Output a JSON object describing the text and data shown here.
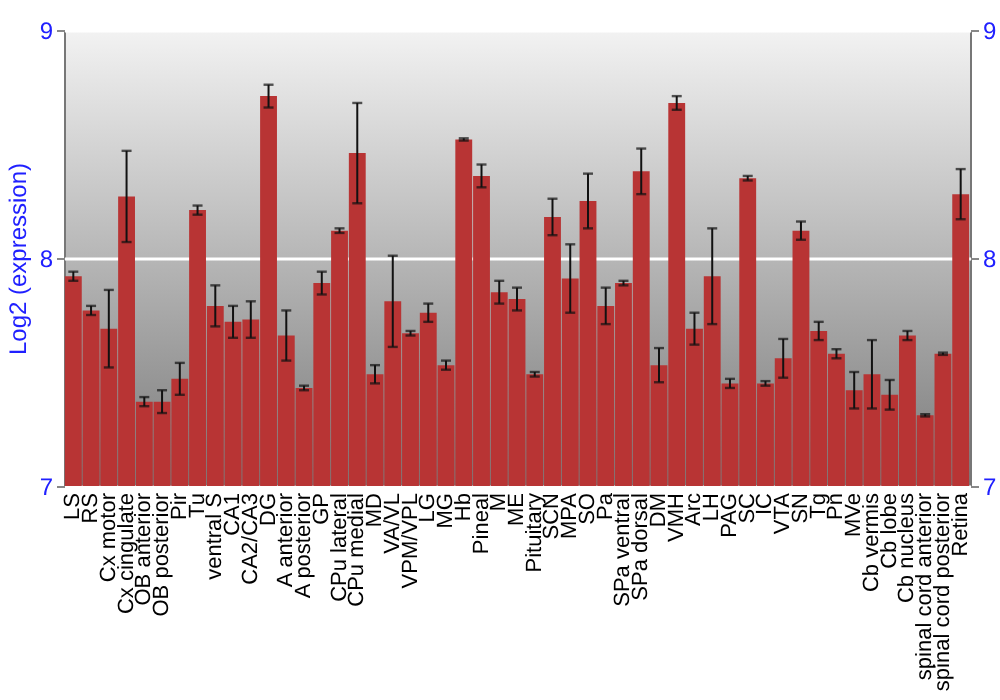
{
  "chart_data": {
    "type": "bar",
    "ylabel": "Log2 (expression)",
    "categories": [
      "LS",
      "RS",
      "Cx motor",
      "Cx cingulate",
      "OB anterior",
      "OB posterior",
      "Pir",
      "Tu",
      "ventral S",
      "CA1",
      "CA2/CA3",
      "DG",
      "A anterior",
      "A posterior",
      "GP",
      "CPu lateral",
      "CPu medial",
      "MD",
      "VA/VL",
      "VPM/VPL",
      "LG",
      "MG",
      "Hb",
      "Pineal",
      "M",
      "ME",
      "Pituitary",
      "SCN",
      "MPA",
      "SO",
      "Pa",
      "SPa ventral",
      "SPa dorsal",
      "DM",
      "VMH",
      "Arc",
      "LH",
      "PAG",
      "SC",
      "IC",
      "VTA",
      "SN",
      "Tg",
      "Pn",
      "MVe",
      "Cb vermis",
      "Cb lobe",
      "Cb nucleus",
      "spinal cord anterior",
      "spinal cord posterior",
      "Retina"
    ],
    "series": [
      {
        "color": "#b83434",
        "values": [
          7.92,
          7.77,
          7.69,
          8.27,
          7.37,
          7.37,
          7.47,
          8.21,
          7.79,
          7.72,
          7.73,
          8.71,
          7.66,
          7.43,
          7.89,
          8.12,
          8.46,
          7.49,
          7.81,
          7.67,
          7.76,
          7.53,
          8.52,
          8.36,
          7.85,
          7.82,
          7.49,
          8.18,
          7.91,
          8.25,
          7.79,
          7.89,
          8.38,
          7.53,
          8.68,
          7.69,
          7.92,
          7.45,
          8.35,
          7.45,
          7.56,
          8.12,
          7.68,
          7.58,
          7.42,
          7.49,
          7.4,
          7.66,
          7.31,
          7.58,
          8.28
        ],
        "errors": [
          0.02,
          0.02,
          0.17,
          0.2,
          0.02,
          0.05,
          0.07,
          0.02,
          0.09,
          0.07,
          0.08,
          0.05,
          0.11,
          0.01,
          0.05,
          0.01,
          0.22,
          0.04,
          0.2,
          0.01,
          0.04,
          0.02,
          0.005,
          0.05,
          0.05,
          0.05,
          0.01,
          0.08,
          0.15,
          0.12,
          0.08,
          0.01,
          0.1,
          0.075,
          0.03,
          0.07,
          0.21,
          0.02,
          0.01,
          0.01,
          0.085,
          0.04,
          0.04,
          0.02,
          0.08,
          0.15,
          0.065,
          0.02,
          0.005,
          0.005,
          0.11
        ]
      }
    ],
    "ylim": [
      7,
      9
    ],
    "yticks": [
      7,
      8,
      9
    ],
    "y2lim": [
      7,
      9
    ],
    "y2ticks": [
      7,
      8,
      9
    ],
    "grid": "y"
  }
}
